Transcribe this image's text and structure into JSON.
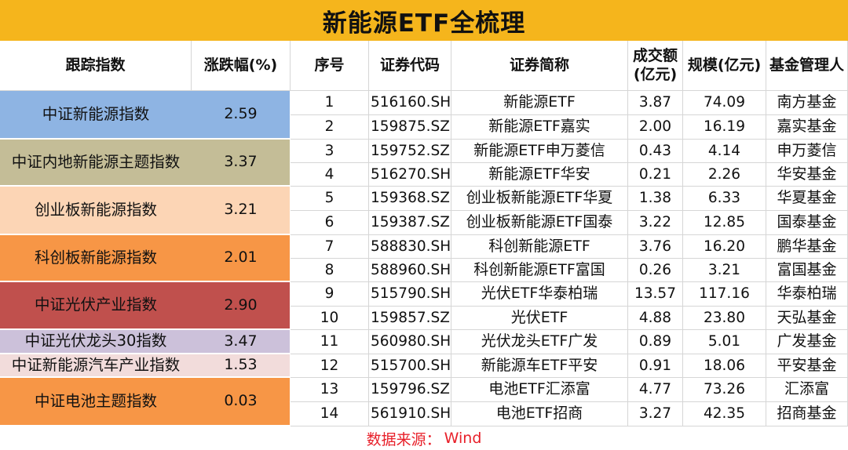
{
  "title": "新能源ETF全梳理",
  "headers": {
    "index": "跟踪指数",
    "change": "涨跌幅(%)",
    "seq": "序号",
    "code": "证券代码",
    "name": "证券简称",
    "turnover": "成交额(亿元)",
    "scale": "规模(亿元)",
    "manager": "基金管理人"
  },
  "index_groups": [
    {
      "name": "中证新能源指数",
      "change": "2.59",
      "color": "#8eb4e3"
    },
    {
      "name": "中证内地新能源主题指数",
      "change": "3.37",
      "color": "#c4bd97"
    },
    {
      "name": "创业板新能源指数",
      "change": "3.21",
      "color": "#fcd5b5"
    },
    {
      "name": "科创板新能源指数",
      "change": "2.01",
      "color": "#f79646"
    },
    {
      "name": "中证光伏产业指数",
      "change": "2.90",
      "color": "#c0504d"
    },
    {
      "name": "中证光伏龙头30指数",
      "change": "3.47",
      "color": "#ccc1da"
    },
    {
      "name": "中证新能源汽车产业指数",
      "change": "1.53",
      "color": "#f2dcdb"
    },
    {
      "name": "中证电池主题指数",
      "change": "0.03",
      "color": "#f79646"
    }
  ],
  "rows": [
    {
      "seq": "1",
      "code": "516160.SH",
      "name": "新能源ETF",
      "turnover": "3.87",
      "scale": "74.09",
      "manager": "南方基金"
    },
    {
      "seq": "2",
      "code": "159875.SZ",
      "name": "新能源ETF嘉实",
      "turnover": "2.00",
      "scale": "16.19",
      "manager": "嘉实基金"
    },
    {
      "seq": "3",
      "code": "159752.SZ",
      "name": "新能源ETF申万菱信",
      "turnover": "0.43",
      "scale": "4.14",
      "manager": "申万菱信"
    },
    {
      "seq": "4",
      "code": "516270.SH",
      "name": "新能源ETF华安",
      "turnover": "0.21",
      "scale": "2.26",
      "manager": "华安基金"
    },
    {
      "seq": "5",
      "code": "159368.SZ",
      "name": "创业板新能源ETF华夏",
      "turnover": "1.38",
      "scale": "6.33",
      "manager": "华夏基金"
    },
    {
      "seq": "6",
      "code": "159387.SZ",
      "name": "创业板新能源ETF国泰",
      "turnover": "3.22",
      "scale": "12.85",
      "manager": "国泰基金"
    },
    {
      "seq": "7",
      "code": "588830.SH",
      "name": "科创新能源ETF",
      "turnover": "3.76",
      "scale": "16.20",
      "manager": "鹏华基金"
    },
    {
      "seq": "8",
      "code": "588960.SH",
      "name": "科创新能源ETF富国",
      "turnover": "0.26",
      "scale": "3.21",
      "manager": "富国基金"
    },
    {
      "seq": "9",
      "code": "515790.SH",
      "name": "光伏ETF华泰柏瑞",
      "turnover": "13.57",
      "scale": "117.16",
      "manager": "华泰柏瑞"
    },
    {
      "seq": "10",
      "code": "159857.SZ",
      "name": "光伏ETF",
      "turnover": "4.88",
      "scale": "23.80",
      "manager": "天弘基金"
    },
    {
      "seq": "11",
      "code": "560980.SH",
      "name": "光伏龙头ETF广发",
      "turnover": "0.89",
      "scale": "5.01",
      "manager": "广发基金"
    },
    {
      "seq": "12",
      "code": "515700.SH",
      "name": "新能源车ETF平安",
      "turnover": "0.91",
      "scale": "18.06",
      "manager": "平安基金"
    },
    {
      "seq": "13",
      "code": "159796.SZ",
      "name": "电池ETF汇添富",
      "turnover": "4.77",
      "scale": "73.26",
      "manager": "汇添富"
    },
    {
      "seq": "14",
      "code": "561910.SH",
      "name": "电池ETF招商",
      "turnover": "3.27",
      "scale": "42.35",
      "manager": "招商基金"
    }
  ],
  "source": {
    "label": "数据来源：",
    "value": "Wind"
  }
}
